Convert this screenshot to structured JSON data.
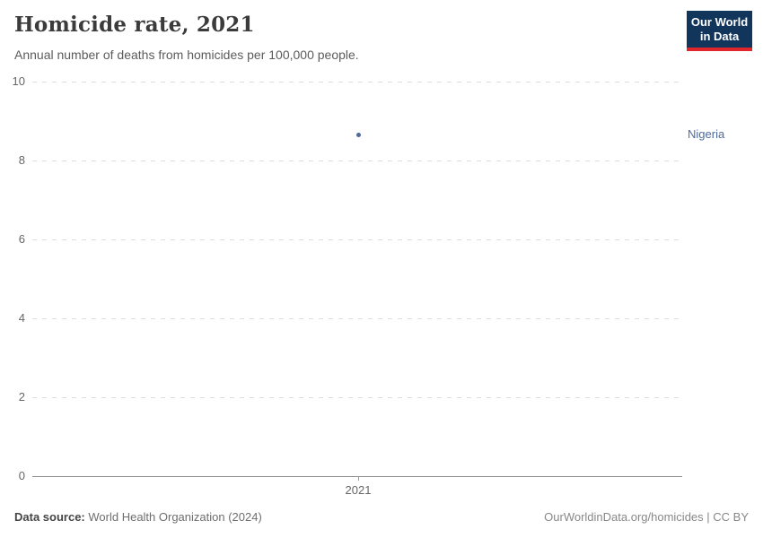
{
  "header": {
    "title": "Homicide rate, 2021",
    "subtitle": "Annual number of deaths from homicides per 100,000 people.",
    "logo": {
      "line1": "Our World",
      "line2": "in Data",
      "bg_color": "#12355c",
      "stripe_color": "#e0262b"
    }
  },
  "chart_data": {
    "type": "scatter",
    "title": "Homicide rate, 2021",
    "subtitle": "Annual number of deaths from homicides per 100,000 people.",
    "x": [
      2021
    ],
    "x_tick_labels": [
      "2021"
    ],
    "series": [
      {
        "name": "Nigeria",
        "values": [
          8.65
        ],
        "color": "#4c6a9c"
      }
    ],
    "y_ticks": [
      0,
      2,
      4,
      6,
      8,
      10
    ],
    "ylim": [
      0,
      10
    ],
    "xlabel": "",
    "ylabel": "",
    "grid": "horizontal-dashed",
    "legend_position": "right-of-point"
  },
  "footer": {
    "data_source_label": "Data source:",
    "data_source_value": "World Health Organization (2024)",
    "credit": "OurWorldinData.org/homicides | CC BY"
  },
  "colors": {
    "accent_blue": "#4c6a9c",
    "grid": "#dddddd",
    "axis": "#8f8f8f",
    "tick_text": "#666666"
  }
}
